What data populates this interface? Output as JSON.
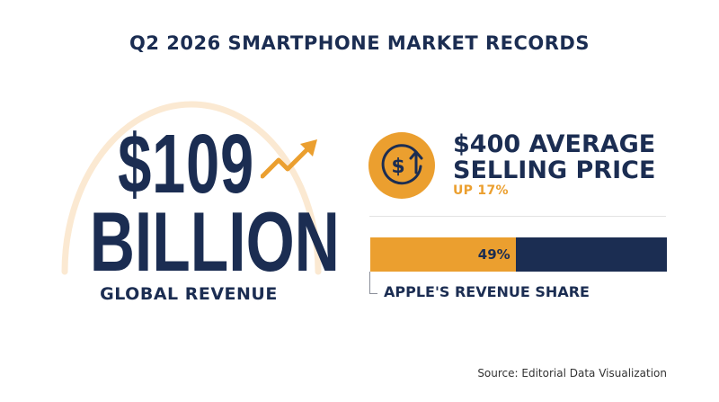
{
  "title": "Q2 2026 SMARTPHONE MARKET RECORDS",
  "revenue": {
    "value": "$109",
    "unit": "BILLION",
    "label": "GLOBAL REVENUE"
  },
  "asp": {
    "line1": "$400 AVERAGE",
    "line2": "SELLING PRICE",
    "change": "UP 17%",
    "icon": "dollar-circle-up-arrow-icon"
  },
  "apple_share": {
    "value_text": "49%",
    "value": 0.49,
    "label": "APPLE'S REVENUE SHARE"
  },
  "source": "Source: Editorial Data Visualization",
  "colors": {
    "navy": "#1b2d52",
    "orange": "#eb9f2f",
    "arc": "#fbe9d2"
  }
}
